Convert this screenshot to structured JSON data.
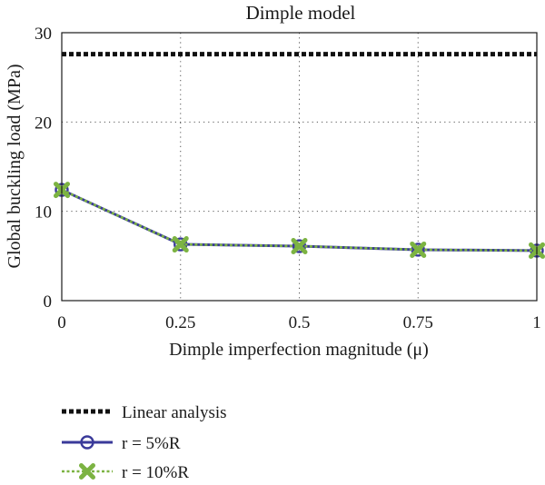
{
  "chart_data": {
    "type": "line",
    "title": "Dimple model",
    "xlabel": "Dimple imperfection magnitude (μ)",
    "ylabel": "Global buckling load (MPa)",
    "x": [
      0,
      0.25,
      0.5,
      0.75,
      1
    ],
    "x_tick_labels": [
      "0",
      "0.25",
      "0.5",
      "0.75",
      "1"
    ],
    "y_ticks": [
      0,
      10,
      20,
      30
    ],
    "y_tick_labels": [
      "0",
      "10",
      "20",
      "30"
    ],
    "xlim": [
      0,
      1
    ],
    "ylim": [
      0,
      30
    ],
    "grid": true,
    "legend_position": "below",
    "series": [
      {
        "name": "Linear analysis",
        "values": [
          27.6,
          27.6,
          27.6,
          27.6,
          27.6
        ],
        "color": "#111111",
        "style": "dotted",
        "marker": "none"
      },
      {
        "name": "r = 5%R",
        "values": [
          12.4,
          6.3,
          6.1,
          5.7,
          5.6
        ],
        "color": "#3a3a9a",
        "style": "solid",
        "marker": "circle"
      },
      {
        "name": "r = 10%R",
        "values": [
          12.4,
          6.3,
          6.1,
          5.7,
          5.6
        ],
        "color": "#7cb342",
        "style": "dotted",
        "marker": "x"
      }
    ]
  }
}
